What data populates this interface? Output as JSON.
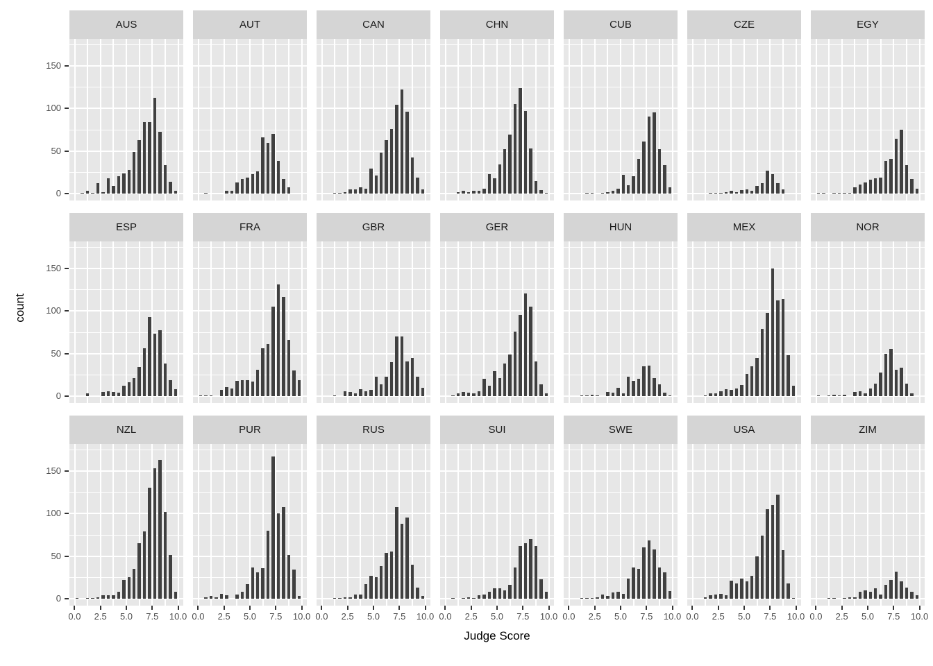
{
  "chart_data": {
    "type": "bar",
    "subtype": "faceted-histogram",
    "title": "",
    "xlabel": "Judge Score",
    "ylabel": "count",
    "x_domain": [
      -0.5,
      10.5
    ],
    "y_domain": [
      -8.5,
      181.3
    ],
    "bin_width": 0.5,
    "bin_start": 0,
    "x_major_ticks": [
      0,
      2.5,
      5,
      7.5,
      10
    ],
    "x_tick_labels": [
      "0.0",
      "2.5",
      "5.0",
      "7.5",
      "10.0"
    ],
    "x_minor_gridlines": [
      1.25,
      3.75,
      6.25,
      8.75
    ],
    "y_major_ticks": [
      0,
      50,
      100,
      150
    ],
    "y_tick_labels": [
      "0",
      "50",
      "100",
      "150"
    ],
    "y_minor_gridlines": [
      25,
      75,
      125,
      175
    ],
    "grid": "on",
    "legend": "none",
    "facet_columns": 7,
    "facets": [
      {
        "label": "AUS",
        "values": [
          0,
          1,
          3,
          1,
          12,
          2,
          18,
          9,
          20,
          24,
          28,
          49,
          63,
          84,
          84,
          112,
          72,
          33,
          14,
          3
        ]
      },
      {
        "label": "AUT",
        "values": [
          0,
          1,
          0,
          0,
          0,
          3,
          3,
          13,
          17,
          19,
          23,
          26,
          66,
          59,
          70,
          38,
          17,
          7,
          0,
          0
        ]
      },
      {
        "label": "CAN",
        "values": [
          0,
          0,
          1,
          1,
          2,
          5,
          5,
          7,
          6,
          29,
          21,
          48,
          63,
          76,
          104,
          122,
          96,
          42,
          19,
          5
        ]
      },
      {
        "label": "CHN",
        "values": [
          0,
          0,
          2,
          3,
          2,
          3,
          3,
          6,
          23,
          18,
          34,
          52,
          69,
          105,
          124,
          97,
          53,
          15,
          4,
          1
        ]
      },
      {
        "label": "CUB",
        "values": [
          0,
          0,
          0,
          1,
          1,
          0,
          1,
          2,
          3,
          6,
          22,
          10,
          20,
          41,
          61,
          90,
          95,
          52,
          33,
          7
        ]
      },
      {
        "label": "CZE",
        "values": [
          0,
          0,
          0,
          1,
          1,
          1,
          2,
          3,
          2,
          4,
          5,
          3,
          9,
          12,
          27,
          23,
          12,
          5,
          0,
          0
        ]
      },
      {
        "label": "EGY",
        "values": [
          1,
          1,
          0,
          1,
          1,
          1,
          1,
          7,
          11,
          13,
          16,
          18,
          19,
          38,
          41,
          64,
          75,
          33,
          17,
          6
        ]
      },
      {
        "label": "ESP",
        "values": [
          0,
          0,
          3,
          0,
          0,
          5,
          6,
          5,
          4,
          12,
          16,
          21,
          34,
          56,
          93,
          73,
          77,
          38,
          19,
          8
        ]
      },
      {
        "label": "FRA",
        "values": [
          1,
          1,
          1,
          0,
          7,
          11,
          9,
          18,
          19,
          19,
          17,
          31,
          56,
          61,
          105,
          131,
          116,
          66,
          30,
          19
        ]
      },
      {
        "label": "GBR",
        "values": [
          0,
          0,
          1,
          0,
          6,
          5,
          3,
          8,
          6,
          7,
          23,
          14,
          23,
          40,
          70,
          70,
          41,
          45,
          23,
          10
        ]
      },
      {
        "label": "GER",
        "values": [
          0,
          1,
          3,
          5,
          4,
          3,
          6,
          20,
          12,
          29,
          21,
          38,
          49,
          76,
          95,
          120,
          105,
          41,
          14,
          3
        ]
      },
      {
        "label": "HUN",
        "values": [
          0,
          0,
          1,
          1,
          2,
          1,
          0,
          5,
          4,
          10,
          3,
          23,
          18,
          20,
          35,
          36,
          21,
          14,
          4,
          1
        ]
      },
      {
        "label": "MEX",
        "values": [
          0,
          0,
          1,
          3,
          3,
          6,
          8,
          7,
          9,
          13,
          26,
          35,
          45,
          79,
          98,
          150,
          112,
          114,
          48,
          12
        ]
      },
      {
        "label": "NOR",
        "values": [
          1,
          0,
          1,
          2,
          1,
          2,
          0,
          5,
          6,
          3,
          9,
          15,
          28,
          50,
          55,
          31,
          33,
          15,
          3,
          0
        ]
      },
      {
        "label": "NZL",
        "values": [
          1,
          0,
          1,
          1,
          2,
          4,
          4,
          4,
          8,
          22,
          25,
          35,
          65,
          79,
          130,
          153,
          163,
          102,
          51,
          8
        ]
      },
      {
        "label": "PUR",
        "values": [
          0,
          2,
          3,
          2,
          6,
          4,
          0,
          5,
          8,
          17,
          37,
          31,
          36,
          80,
          167,
          100,
          107,
          51,
          34,
          3
        ]
      },
      {
        "label": "RUS",
        "values": [
          0,
          0,
          1,
          1,
          2,
          2,
          5,
          5,
          17,
          27,
          25,
          38,
          54,
          55,
          107,
          88,
          95,
          40,
          13,
          3
        ]
      },
      {
        "label": "SUI",
        "values": [
          0,
          1,
          0,
          1,
          2,
          1,
          4,
          5,
          8,
          12,
          12,
          10,
          16,
          37,
          62,
          65,
          70,
          62,
          23,
          8
        ]
      },
      {
        "label": "SWE",
        "values": [
          0,
          0,
          1,
          1,
          1,
          2,
          5,
          3,
          7,
          8,
          6,
          24,
          37,
          35,
          60,
          68,
          58,
          37,
          31,
          9
        ]
      },
      {
        "label": "USA",
        "values": [
          0,
          0,
          2,
          4,
          5,
          6,
          4,
          21,
          18,
          24,
          20,
          27,
          50,
          74,
          105,
          110,
          122,
          57,
          18,
          1
        ]
      },
      {
        "label": "ZIM",
        "values": [
          0,
          0,
          1,
          1,
          0,
          1,
          2,
          2,
          8,
          10,
          8,
          12,
          5,
          16,
          22,
          32,
          20,
          13,
          8,
          4
        ]
      }
    ]
  },
  "colors": {
    "panel_bg": "#E7E7E7",
    "strip_bg": "#D5D5D5",
    "bar": "#404040",
    "gridline": "#FFFFFF",
    "axis_text": "#4D4D4D",
    "axis_title": "#000000",
    "tick_mark": "#333333"
  }
}
